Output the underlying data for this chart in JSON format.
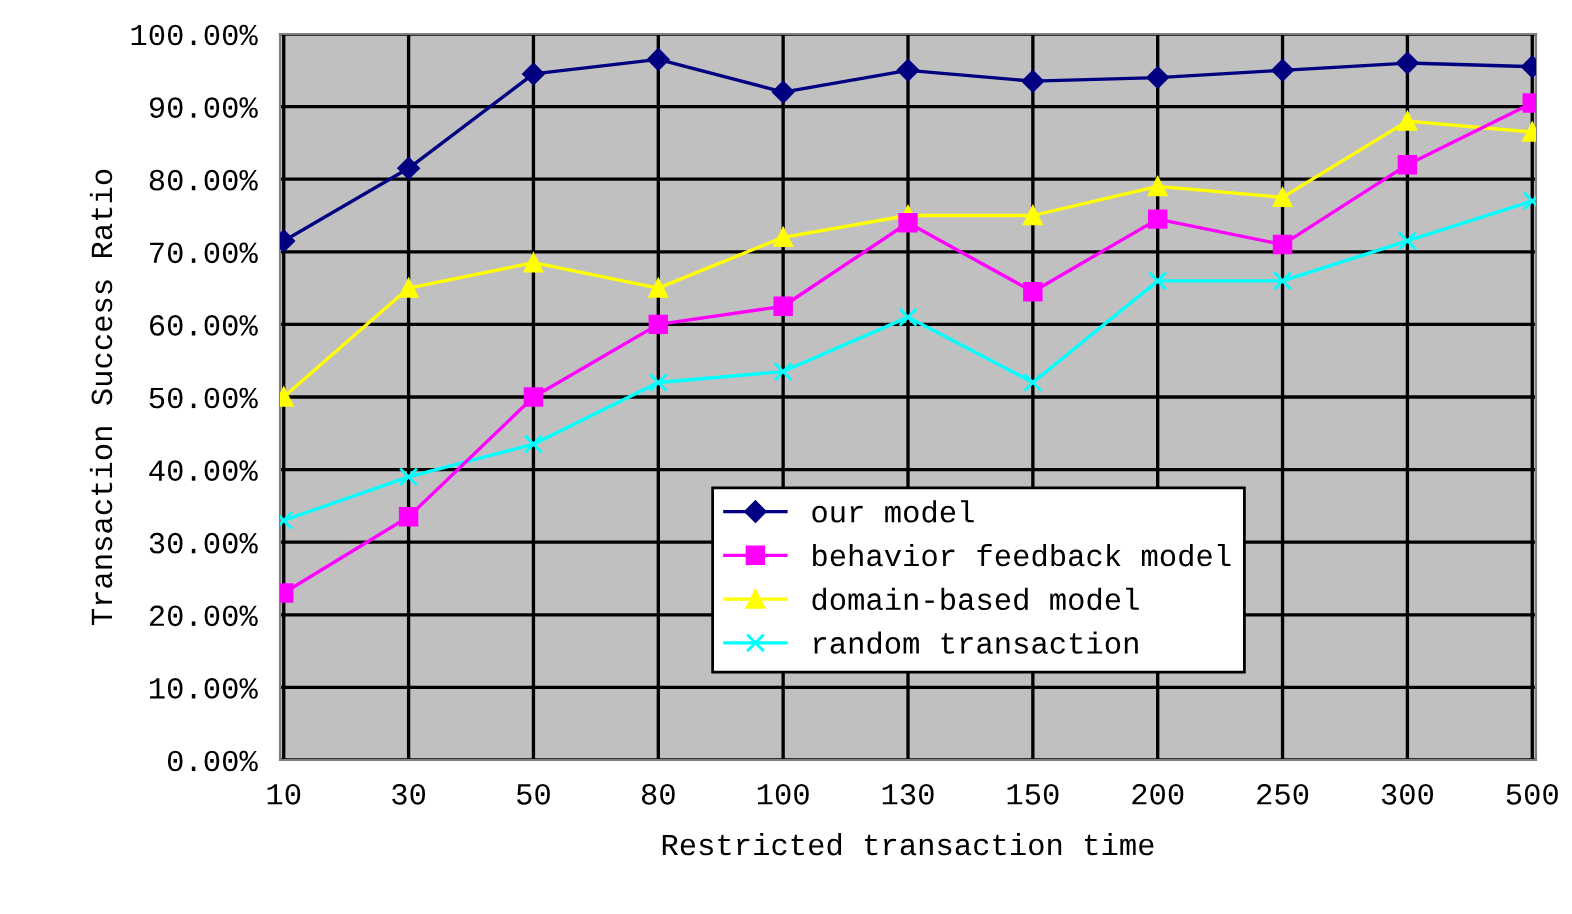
{
  "chart_data": {
    "type": "line",
    "xlabel": "Restricted transaction time",
    "ylabel": "Transaction Success Ratio",
    "categories": [
      "10",
      "30",
      "50",
      "80",
      "100",
      "130",
      "150",
      "200",
      "250",
      "300",
      "500"
    ],
    "series": [
      {
        "name": "our model",
        "color": "#000080",
        "marker": "diamond",
        "values": [
          71.5,
          81.5,
          94.5,
          96.5,
          92,
          95,
          93.5,
          94,
          95,
          96,
          95.5
        ]
      },
      {
        "name": "behavior feedback model",
        "color": "#ff00ff",
        "marker": "square",
        "values": [
          23,
          33.5,
          50,
          60,
          62.5,
          74,
          64.5,
          74.5,
          71,
          82,
          90.5
        ]
      },
      {
        "name": "domain-based model",
        "color": "#ffff00",
        "marker": "triangle",
        "values": [
          50,
          65,
          68.5,
          65,
          72,
          75,
          75,
          79,
          77.5,
          88,
          86.5
        ]
      },
      {
        "name": "random transaction",
        "color": "#00ffff",
        "marker": "cross",
        "values": [
          33,
          39,
          43.5,
          52,
          53.5,
          61,
          52,
          66,
          66,
          71.5,
          77
        ]
      }
    ],
    "ylim": [
      0,
      100
    ],
    "yticks": [
      {
        "value": 0,
        "label": "0.00%"
      },
      {
        "value": 10,
        "label": "10.00%"
      },
      {
        "value": 20,
        "label": "20.00%"
      },
      {
        "value": 30,
        "label": "30.00%"
      },
      {
        "value": 40,
        "label": "40.00%"
      },
      {
        "value": 50,
        "label": "50.00%"
      },
      {
        "value": 60,
        "label": "60.00%"
      },
      {
        "value": 70,
        "label": "70.00%"
      },
      {
        "value": 80,
        "label": "80.00%"
      },
      {
        "value": 90,
        "label": "90.00%"
      },
      {
        "value": 100,
        "label": "100.00%"
      }
    ],
    "grid": true,
    "legend": "bottom right",
    "line_style": "solid"
  }
}
